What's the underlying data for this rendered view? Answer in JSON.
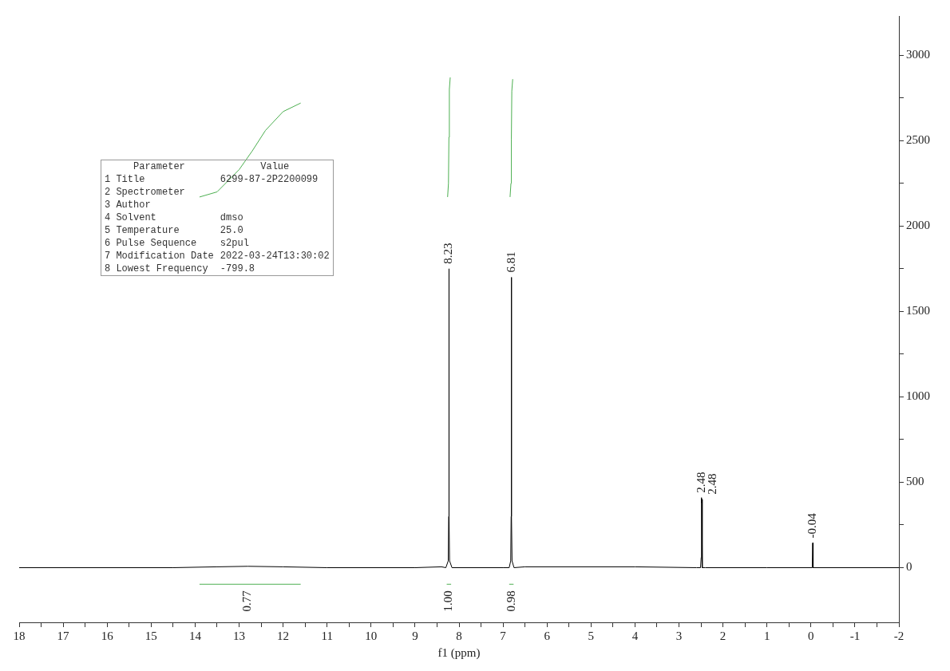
{
  "chart_data": {
    "type": "line",
    "xlabel": "f1 (ppm)",
    "xlim": [
      18,
      -2
    ],
    "xticks": [
      18,
      17,
      16,
      15,
      14,
      13,
      12,
      11,
      10,
      9,
      8,
      7,
      6,
      5,
      4,
      3,
      2,
      1,
      0,
      -1,
      -2,
      {
        "value": 17.5,
        "label": null
      },
      {
        "value": 16.5,
        "label": null
      },
      {
        "value": 15.5,
        "label": null
      },
      {
        "value": 14.5,
        "label": null
      },
      {
        "value": 13.5,
        "label": null
      },
      {
        "value": 12.5,
        "label": null
      },
      {
        "value": 11.5,
        "label": null
      },
      {
        "value": 10.5,
        "label": null
      },
      {
        "value": 9.5,
        "label": null
      },
      {
        "value": 8.5,
        "label": null
      },
      {
        "value": 7.5,
        "label": null
      },
      {
        "value": 6.5,
        "label": null
      },
      {
        "value": 5.5,
        "label": null
      },
      {
        "value": 4.5,
        "label": null
      },
      {
        "value": 3.5,
        "label": null
      },
      {
        "value": 2.5,
        "label": null
      },
      {
        "value": 1.5,
        "label": null
      },
      {
        "value": 0.5,
        "label": null
      },
      {
        "value": -0.5,
        "label": null
      },
      {
        "value": -1.5,
        "label": null
      }
    ],
    "ylim": [
      -320,
      3230
    ],
    "yticks": [
      0,
      500,
      1000,
      1500,
      2000,
      2500,
      3000,
      {
        "value": 250,
        "label": null
      },
      {
        "value": 750,
        "label": null
      },
      {
        "value": 1250,
        "label": null
      },
      {
        "value": 1750,
        "label": null
      },
      {
        "value": 2250,
        "label": null
      },
      {
        "value": 2750,
        "label": null
      }
    ],
    "grid": false,
    "legend": false,
    "marker": "none",
    "line_style": "solid",
    "series": [
      {
        "color": "#000000",
        "x": [
          18,
          14.5,
          13.5,
          12.8,
          12,
          11,
          9,
          8.4,
          8.3,
          8.245,
          8.235,
          8.23,
          8.225,
          8.215,
          8.16,
          8,
          7,
          6.86,
          6.825,
          6.815,
          6.81,
          6.805,
          6.795,
          6.75,
          6.5,
          4,
          2.6,
          2.51,
          2.495,
          2.49,
          2.485,
          2.48,
          2.475,
          2.465,
          2.4,
          1,
          -0.03,
          -0.04,
          -0.05,
          -2
        ],
        "values": [
          0,
          0,
          5,
          8,
          5,
          0,
          0,
          5,
          0,
          40,
          300,
          1750,
          300,
          40,
          0,
          0,
          0,
          0,
          40,
          300,
          1700,
          300,
          40,
          0,
          5,
          5,
          0,
          0,
          60,
          410,
          380,
          400,
          60,
          0,
          0,
          0,
          0,
          145,
          0,
          0
        ]
      },
      {
        "color": "#4caf50",
        "x": [
          13.9,
          13.5,
          13,
          12.7,
          12.4,
          12,
          11.6
        ],
        "values": [
          2170,
          2200,
          2330,
          2440,
          2560,
          2670,
          2720
        ]
      },
      {
        "color": "#4caf50",
        "x": [
          8.26,
          8.24,
          8.23,
          8.22,
          8.2
        ],
        "values": [
          2170,
          2250,
          2520,
          2800,
          2870
        ]
      },
      {
        "color": "#4caf50",
        "x": [
          6.84,
          6.82,
          6.81,
          6.8,
          6.78
        ],
        "values": [
          2170,
          2250,
          2510,
          2790,
          2860
        ]
      },
      {
        "color": "#4caf50",
        "x": [
          13.9,
          11.6
        ],
        "values": [
          -97,
          -97
        ]
      },
      {
        "color": "#4caf50",
        "x": [
          8.28,
          8.18
        ],
        "values": [
          -97,
          -97
        ]
      },
      {
        "color": "#4caf50",
        "x": [
          6.86,
          6.76
        ],
        "values": [
          -97,
          -97
        ]
      }
    ],
    "annotations": [
      {
        "text": "8.23",
        "x": 8.23,
        "y": 1750
      },
      {
        "text": "6.81",
        "x": 6.81,
        "y": 1700
      },
      {
        "text": "2.48",
        "x": 2.49,
        "y": 410
      },
      {
        "text": "2.48",
        "x": 2.48,
        "y": 400
      },
      {
        "text": "-0.04",
        "x": -0.04,
        "y": 145
      },
      {
        "text": "0.77",
        "x": 12.8,
        "y": -97
      },
      {
        "text": "1.00",
        "x": 8.23,
        "y": -97
      },
      {
        "text": "0.98",
        "x": 6.81,
        "y": -97
      },
      "Parameter\tValue",
      "1 Title\t6299-87-2P2200099",
      "2 Spectrometer\t",
      "3 Author\t",
      "4 Solvent\tdmso",
      "5 Temperature\t25.0",
      "6 Pulse Sequence\ts2pul",
      "7 Modification Date\t2022-03-24T13:30:02",
      "8 Lowest Frequency\t-799.8"
    ]
  }
}
